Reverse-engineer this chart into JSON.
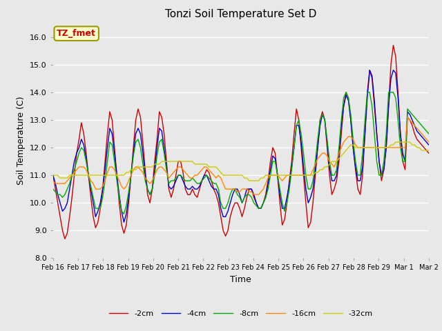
{
  "title": "Tonzi Soil Temperature Set D",
  "xlabel": "Time",
  "ylabel": "Soil Temperature (C)",
  "ylim": [
    8.0,
    16.5
  ],
  "yticks": [
    8.0,
    9.0,
    10.0,
    11.0,
    12.0,
    13.0,
    14.0,
    15.0,
    16.0
  ],
  "legend_labels": [
    "-2cm",
    "-4cm",
    "-8cm",
    "-16cm",
    "-32cm"
  ],
  "legend_colors": [
    "#cc0000",
    "#0000cc",
    "#00aa00",
    "#ff8800",
    "#cccc00"
  ],
  "annotation_text": "TZ_fmet",
  "annotation_color": "#cc0000",
  "annotation_bg": "#ffffcc",
  "annotation_border": "#999900",
  "plot_bg": "#e8e8e8",
  "fig_bg": "#e8e8e8",
  "grid_color": "white",
  "dates": [
    "Feb 16",
    "Feb 17",
    "Feb 18",
    "Feb 19",
    "Feb 20",
    "Feb 21",
    "Feb 22",
    "Feb 23",
    "Feb 24",
    "Feb 25",
    "Feb 26",
    "Feb 27",
    "Feb 28",
    "Feb 29",
    "Mar 1",
    "Mar 2"
  ],
  "n_points": 160,
  "line_width": 1.0
}
